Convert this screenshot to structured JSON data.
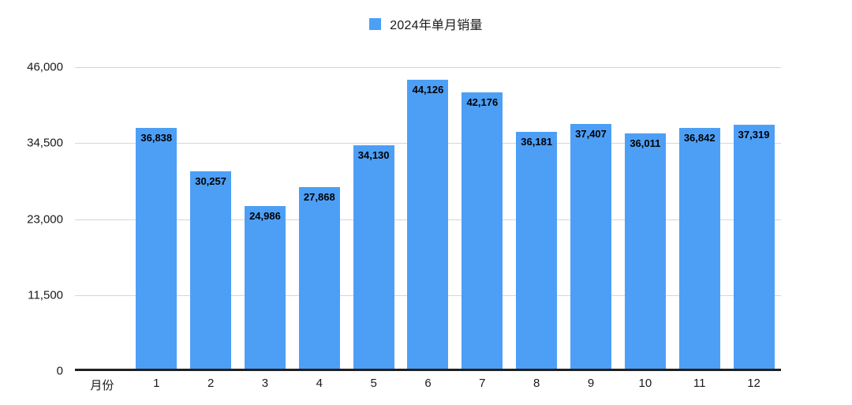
{
  "legend": {
    "label": "2024年单月销量"
  },
  "colors": {
    "bar": "#4D9FF6",
    "gridline": "#D6D6D6",
    "axis_line": "#212121",
    "tick_text": "#1A1A1A",
    "value_label_text": "#000000",
    "background": "#FFFFFF"
  },
  "chart_data": {
    "type": "bar",
    "title": "2024年单月销量",
    "xlabel": "月份",
    "categories": [
      "1",
      "2",
      "3",
      "4",
      "5",
      "6",
      "7",
      "8",
      "9",
      "10",
      "11",
      "12"
    ],
    "values": [
      36838,
      30257,
      24986,
      27868,
      34130,
      44126,
      42176,
      36181,
      37407,
      36011,
      36842,
      37319
    ],
    "value_labels": [
      "36,838",
      "30,257",
      "24,986",
      "27,868",
      "34,130",
      "44,126",
      "42,176",
      "36,181",
      "37,407",
      "36,011",
      "36,842",
      "37,319"
    ],
    "ylim": [
      0,
      46000
    ],
    "yticks": [
      0,
      11500,
      23000,
      34500,
      46000
    ],
    "ytick_labels": [
      "0",
      "11,500",
      "23,000",
      "34,500",
      "46,000"
    ],
    "grid": true,
    "legend_position": "top-center"
  }
}
